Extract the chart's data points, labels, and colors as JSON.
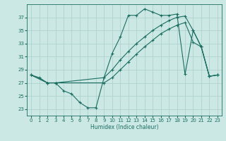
{
  "xlabel": "Humidex (Indice chaleur)",
  "background_color": "#cce8e5",
  "grid_color": "#aacfcc",
  "line_color": "#1a6e60",
  "xlim": [
    -0.5,
    23.5
  ],
  "ylim": [
    22,
    39
  ],
  "xticks": [
    0,
    1,
    2,
    3,
    4,
    5,
    6,
    7,
    8,
    9,
    10,
    11,
    12,
    13,
    14,
    15,
    16,
    17,
    18,
    19,
    20,
    21,
    22,
    23
  ],
  "yticks": [
    23,
    25,
    27,
    29,
    31,
    33,
    35,
    37
  ],
  "line1_x": [
    0,
    1,
    2,
    3,
    4,
    5,
    6,
    7,
    8,
    9,
    10,
    11,
    12,
    13,
    14,
    15,
    16,
    17,
    18,
    19,
    20,
    21,
    22,
    23
  ],
  "line1_y": [
    28.2,
    27.8,
    27.0,
    27.0,
    25.8,
    25.3,
    24.0,
    23.2,
    23.2,
    27.8,
    31.5,
    34.0,
    37.3,
    37.3,
    38.3,
    37.8,
    37.3,
    37.3,
    37.5,
    28.3,
    35.0,
    32.5,
    28.0,
    28.2
  ],
  "line2_x": [
    0,
    2,
    3,
    9,
    10,
    11,
    12,
    13,
    14,
    15,
    16,
    17,
    18,
    19,
    20,
    21,
    22,
    23
  ],
  "line2_y": [
    28.2,
    27.0,
    27.0,
    27.8,
    29.0,
    30.5,
    31.8,
    33.0,
    34.0,
    35.0,
    35.8,
    36.5,
    37.0,
    37.2,
    35.0,
    32.5,
    28.0,
    28.2
  ],
  "line3_x": [
    0,
    2,
    3,
    9,
    10,
    11,
    12,
    13,
    14,
    15,
    16,
    17,
    18,
    19,
    20,
    21,
    22,
    23
  ],
  "line3_y": [
    28.2,
    27.0,
    27.0,
    27.0,
    27.8,
    29.0,
    30.2,
    31.4,
    32.5,
    33.5,
    34.5,
    35.2,
    35.8,
    36.2,
    33.2,
    32.5,
    28.0,
    28.2
  ]
}
